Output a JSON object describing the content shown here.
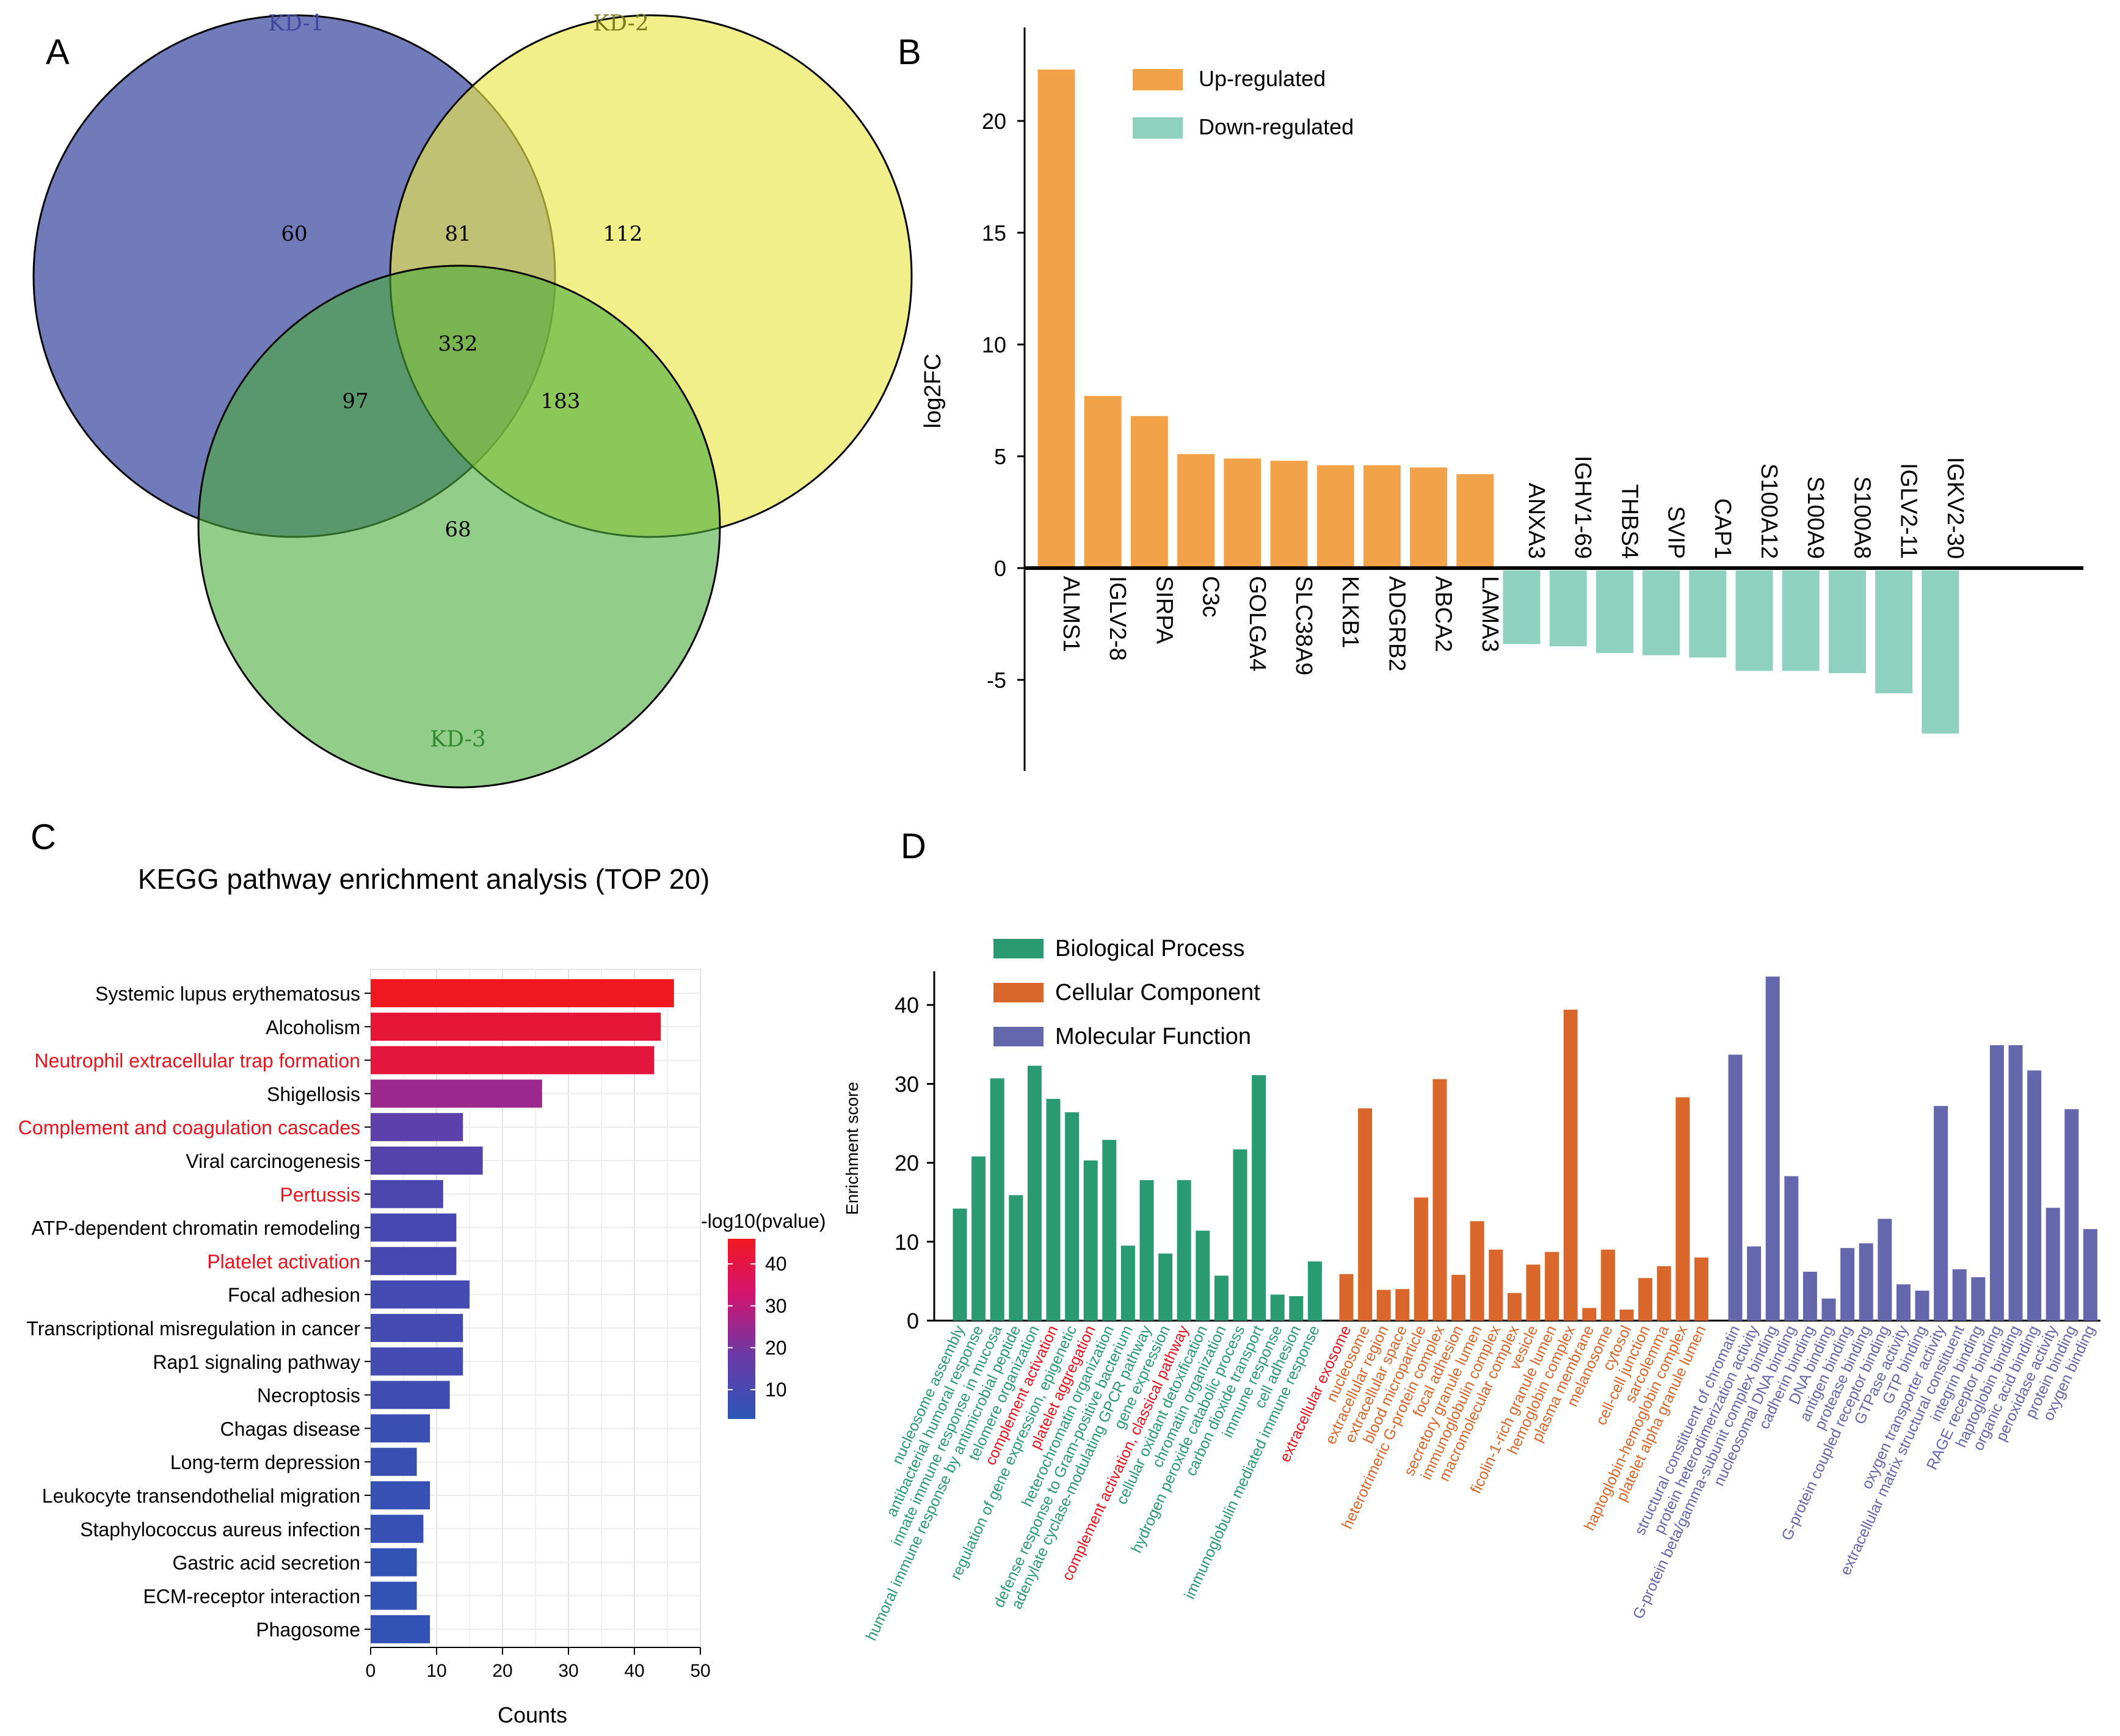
{
  "panels": {
    "a": "A",
    "b": "B",
    "c": "C",
    "d": "D"
  },
  "chart_data": [
    {
      "type": "venn",
      "sets": [
        {
          "name": "KD-1",
          "color": "#3b4a9e"
        },
        {
          "name": "KD-2",
          "color": "#7a7a1e"
        },
        {
          "name": "KD-3",
          "color": "#2e8b2e"
        }
      ],
      "regions": {
        "only_1": 60,
        "only_2": 112,
        "only_3": 68,
        "1_2": 81,
        "1_3": 97,
        "2_3": 183,
        "1_2_3": 332
      }
    },
    {
      "type": "bar",
      "ylabel": "log2FC",
      "ylim": [
        -8,
        23
      ],
      "yticks": [
        -5,
        0,
        5,
        10,
        15,
        20
      ],
      "legend": [
        {
          "label": "Up-regulated",
          "color": "#f2a34a"
        },
        {
          "label": "Down-regulated",
          "color": "#8ed1bf"
        }
      ],
      "categories": [
        "ALMS1",
        "IGLV2-8",
        "SIRPA",
        "C3c",
        "GOLGA4",
        "SLC38A9",
        "KLKB1",
        "ADGRB2",
        "ABCA2",
        "LAMA3",
        "ANXA3",
        "IGHV1-69",
        "THBS4",
        "SVIP",
        "CAP1",
        "S100A12",
        "S100A9",
        "S100A8",
        "IGLV2-11",
        "IGKV2-30"
      ],
      "values": [
        22.3,
        7.7,
        6.8,
        5.1,
        4.9,
        4.8,
        4.6,
        4.6,
        4.5,
        4.2,
        -3.4,
        -3.5,
        -3.8,
        -3.9,
        -4.0,
        -4.6,
        -4.6,
        -4.7,
        -5.6,
        -7.4
      ]
    },
    {
      "type": "bar",
      "orientation": "horizontal",
      "title": "KEGG pathway enrichment analysis (TOP 20)",
      "xlabel": "Counts",
      "xlim": [
        0,
        50
      ],
      "xticks": [
        0,
        10,
        20,
        30,
        40,
        50
      ],
      "colorbar_title": "-log10(pvalue)",
      "colorbar_ticks": [
        10,
        20,
        30,
        40
      ],
      "colorbar_range": [
        3,
        46
      ],
      "highlight_color": "#e8131d",
      "categories": [
        "Systemic lupus erythematosus",
        "Alcoholism",
        "Neutrophil extracellular trap formation",
        "Shigellosis",
        "Complement and coagulation cascades",
        "Viral carcinogenesis",
        "Pertussis",
        "ATP-dependent chromatin remodeling",
        "Platelet activation",
        "Focal adhesion",
        "Transcriptional misregulation in cancer",
        "Rap1 signaling pathway",
        "Necroptosis",
        "Chagas disease",
        "Long-term depression",
        "Leukocyte transendothelial migration",
        "Staphylococcus aureus infection",
        "Gastric acid secretion",
        "ECM-receptor interaction",
        "Phagosome"
      ],
      "values": [
        46,
        44,
        43,
        26,
        14,
        17,
        11,
        13,
        13,
        15,
        14,
        14,
        12,
        9,
        7,
        9,
        8,
        7,
        7,
        9
      ],
      "pvalue_log": [
        46,
        42,
        41,
        25,
        15,
        13,
        11,
        10,
        10,
        9,
        9,
        9,
        8,
        7,
        7,
        6,
        6,
        5,
        5,
        5
      ],
      "highlighted": [
        false,
        false,
        true,
        false,
        true,
        false,
        true,
        false,
        true,
        false,
        false,
        false,
        false,
        false,
        false,
        false,
        false,
        false,
        false,
        false
      ]
    },
    {
      "type": "bar",
      "ylabel": "Enrichment score",
      "ylim": [
        0,
        45
      ],
      "yticks": [
        0,
        10,
        20,
        30,
        40
      ],
      "highlight_color": "#e8131d",
      "series": [
        {
          "name": "Biological Process",
          "color": "#2a9a72",
          "label_color": "#2a9a72",
          "categories": [
            "nucleosome assembly",
            "antibacterial humoral response",
            "innate immune response in mucosa",
            "humoral immune response by antimicrobial peptide",
            "telomere organization",
            "complement activation",
            "regulation of gene expression, epigenetic",
            "platelet aggregation",
            "heterochromatin organization",
            "defense response to Gram-positive bacterium",
            "adenylate cyclase-modulating GPCR pathway",
            "gene expression",
            "complement activation, classical pathway",
            "cellular oxidant detoxification",
            "chromatin organization",
            "hydrogen peroxide catabolic process",
            "carbon dioxide transport",
            "immune response",
            "cell adhesion",
            "immunoglobulin mediated immune response"
          ],
          "values": [
            14.2,
            20.8,
            30.7,
            15.9,
            32.3,
            28.1,
            26.4,
            20.3,
            22.9,
            9.5,
            17.8,
            8.5,
            17.8,
            11.4,
            5.7,
            21.7,
            31.1,
            3.3,
            3.1,
            7.5
          ],
          "highlighted": [
            false,
            false,
            false,
            false,
            false,
            true,
            false,
            true,
            false,
            false,
            false,
            false,
            true,
            false,
            false,
            false,
            false,
            false,
            false,
            false
          ]
        },
        {
          "name": "Cellular Component",
          "color": "#d9662a",
          "label_color": "#d9662a",
          "categories": [
            "extracellular exosome",
            "nucleosome",
            "extracellular region",
            "extracellular space",
            "blood microparticle",
            "heterotrimeric G-protein complex",
            "focal adhesion",
            "secretory granule lumen",
            "immunoglobulin complex",
            "macromolecular complex",
            "vesicle",
            "ficolin-1-rich granule lumen",
            "hemoglobin complex",
            "plasma membrane",
            "melanosome",
            "cytosol",
            "cell-cell junction",
            "sarcolemma",
            "haptoglobin-hemoglobin complex",
            "platelet alpha granule lumen"
          ],
          "values": [
            5.9,
            26.9,
            3.9,
            4.0,
            15.6,
            30.6,
            5.8,
            12.6,
            9.0,
            3.5,
            7.1,
            8.7,
            39.4,
            1.6,
            9.0,
            1.4,
            5.4,
            6.9,
            28.3,
            8.0
          ],
          "highlighted": [
            true,
            false,
            false,
            false,
            false,
            false,
            false,
            false,
            false,
            false,
            false,
            false,
            false,
            false,
            false,
            false,
            false,
            false,
            false,
            false
          ]
        },
        {
          "name": "Molecular Function",
          "color": "#6467ac",
          "label_color": "#6467ac",
          "categories": [
            "structural constituent of chromatin",
            "protein heterodimerization activity",
            "G-protein beta/gamma-subunit complex binding",
            "nucleosomal DNA binding",
            "cadherin binding",
            "DNA binding",
            "antigen binding",
            "protease binding",
            "G-protein coupled receptor binding",
            "GTPase activity",
            "GTP binding",
            "oxygen transporter activity",
            "extracellular matrix structural constituent",
            "integrin binding",
            "RAGE receptor binding",
            "haptoglobin binding",
            "organic acid binding",
            "peroxidase activity",
            "protein binding",
            "oxygen binding"
          ],
          "values": [
            33.7,
            9.4,
            43.6,
            18.3,
            6.2,
            2.8,
            9.2,
            9.8,
            12.9,
            4.6,
            3.8,
            27.2,
            6.5,
            5.5,
            34.9,
            34.9,
            31.7,
            14.3,
            26.8,
            11.6
          ],
          "highlighted": [
            false,
            false,
            false,
            false,
            false,
            false,
            false,
            false,
            false,
            false,
            false,
            false,
            false,
            false,
            false,
            false,
            false,
            false,
            false,
            false
          ]
        }
      ]
    }
  ]
}
